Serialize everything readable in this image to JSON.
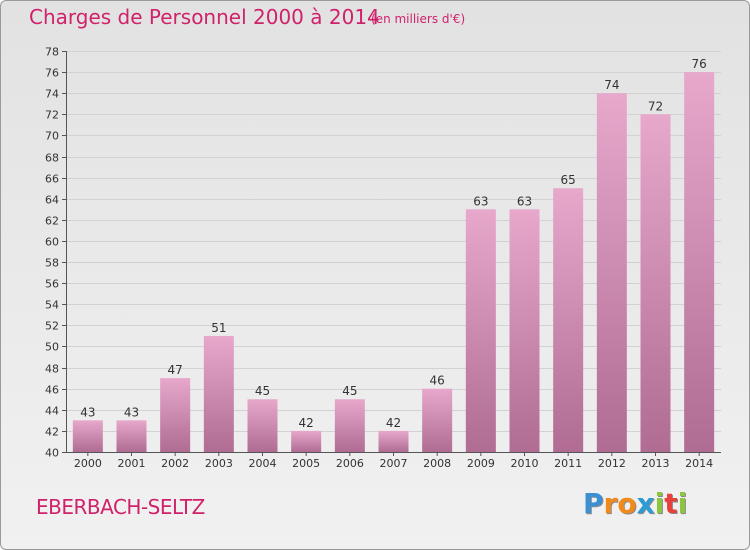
{
  "title": "Charges de Personnel 2000 à 2014",
  "subtitle": "(en milliers d'€)",
  "place": "EBERBACH-SELTZ",
  "logo": {
    "text": "Proxiti",
    "letters": [
      {
        "ch": "P",
        "color": "#3b8fd4"
      },
      {
        "ch": "r",
        "color": "#f08a1a"
      },
      {
        "ch": "o",
        "color": "#f08a1a"
      },
      {
        "ch": "x",
        "color": "#2c9bd6"
      },
      {
        "ch": "i",
        "color": "#8cc63e"
      },
      {
        "ch": "t",
        "color": "#e8403a"
      },
      {
        "ch": "i",
        "color": "#8cc63e"
      }
    ]
  },
  "colors": {
    "accent": "#d0216b",
    "bar_top": "#e7a8cc",
    "bar_bottom": "#b06c93"
  },
  "chart_data": {
    "type": "bar",
    "categories": [
      "2000",
      "2001",
      "2002",
      "2003",
      "2004",
      "2005",
      "2006",
      "2007",
      "2008",
      "2009",
      "2010",
      "2011",
      "2012",
      "2013",
      "2014"
    ],
    "values": [
      43,
      43,
      47,
      51,
      45,
      42,
      45,
      42,
      46,
      63,
      63,
      65,
      74,
      72,
      76
    ],
    "ylim": [
      40,
      78
    ],
    "ytick_step": 2,
    "grid": true,
    "legend": "none"
  }
}
